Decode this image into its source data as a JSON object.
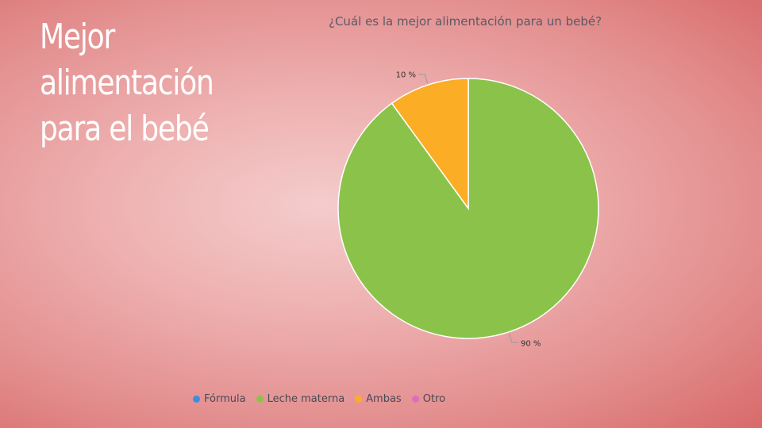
{
  "slide": {
    "title_line1": "Mejor alimentación",
    "title_line2": "para el bebé"
  },
  "chart_data": {
    "type": "pie",
    "title": "¿Cuál es la mejor alimentación para un bebé?",
    "categories": [
      "Fórmula",
      "Leche materna",
      "Ambas",
      "Otro"
    ],
    "values": [
      0,
      90,
      10,
      0
    ],
    "value_labels": [
      "",
      "90 %",
      "10 %",
      ""
    ],
    "colors": [
      "#3c8ee0",
      "#8bc34a",
      "#fbad26",
      "#e06cc0"
    ],
    "legend_position": "bottom-left"
  }
}
